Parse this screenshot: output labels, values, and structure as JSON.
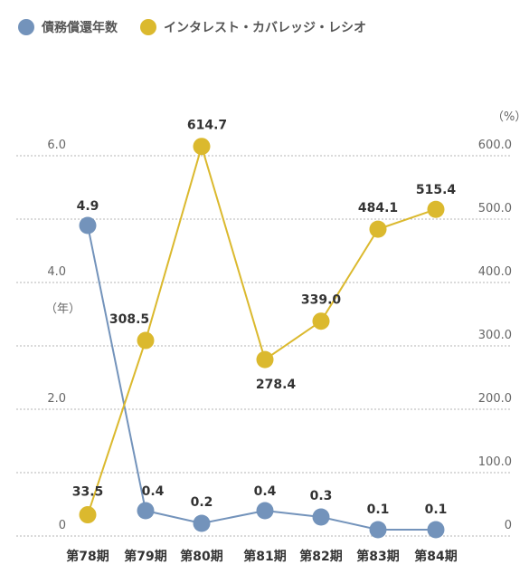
{
  "legend": {
    "items": [
      {
        "label": "債務償還年数",
        "color": "#7393bb"
      },
      {
        "label": "インタレスト・カバレッジ・レシオ",
        "color": "#dbb92e"
      }
    ]
  },
  "chart_data": {
    "type": "line",
    "categories": [
      "第78期",
      "第79期",
      "第80期",
      "第81期",
      "第82期",
      "第83期",
      "第84期"
    ],
    "series": [
      {
        "name": "債務償還年数",
        "axis": "left",
        "color": "#7393bb",
        "values": [
          4.9,
          0.4,
          0.2,
          0.4,
          0.3,
          0.1,
          0.1
        ],
        "labels": [
          "4.9",
          "0.4",
          "0.2",
          "0.4",
          "0.3",
          "0.1",
          "0.1"
        ]
      },
      {
        "name": "インタレスト・カバレッジ・レシオ",
        "axis": "right",
        "color": "#dbb92e",
        "values": [
          33.5,
          308.5,
          614.7,
          278.4,
          339.0,
          484.1,
          515.4
        ],
        "labels": [
          "33.5",
          "308.5",
          "614.7",
          "278.4",
          "339.0",
          "484.1",
          "515.4"
        ]
      }
    ],
    "left_axis": {
      "unit": "（年）",
      "ticks": [
        0,
        2.0,
        4.0,
        6.0
      ],
      "tick_labels": [
        "0",
        "2.0",
        "4.0",
        "6.0"
      ],
      "ylim": [
        0,
        6.0
      ]
    },
    "right_axis": {
      "unit": "（%）",
      "ticks": [
        0,
        100,
        200,
        300,
        400,
        500,
        600
      ],
      "tick_labels": [
        "0",
        "100.0",
        "200.0",
        "300.0",
        "400.0",
        "500.0",
        "600.0"
      ],
      "ylim": [
        0,
        600
      ]
    },
    "grid": true,
    "grid_style": "dotted",
    "legend_position": "top-left"
  }
}
